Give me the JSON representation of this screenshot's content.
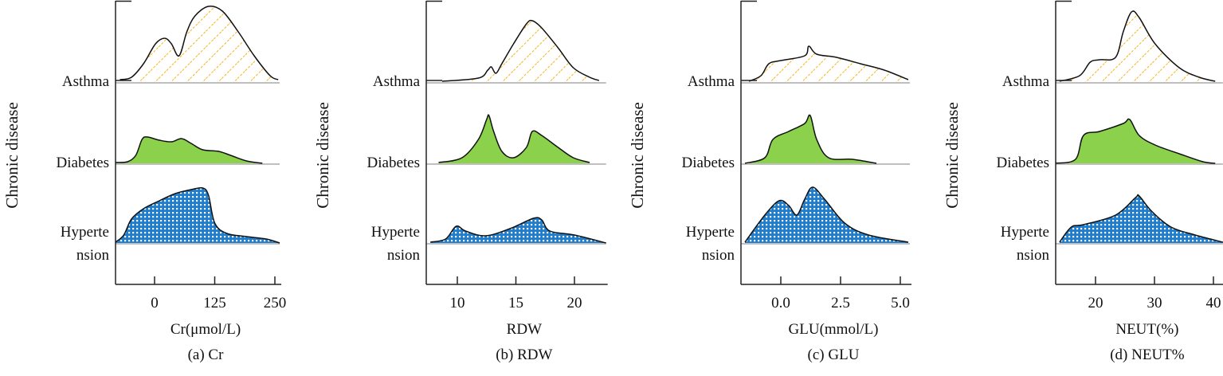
{
  "colors": {
    "asthma_hatch": "#f5b51c",
    "diabetes_fill": "#8cd14b",
    "hypertension_fill": "#1f7dcc",
    "outline": "#111111",
    "baseline": "#aaaaaa"
  },
  "chart_data": [
    {
      "type": "area",
      "title": "(a) Cr",
      "xlabel": "Cr(μmol/L)",
      "ylabel": "Chronic disease",
      "xlim": [
        -81,
        260
      ],
      "xticks": [
        0,
        125,
        250
      ],
      "xtick_labels": [
        "0",
        "125",
        "250"
      ],
      "categories": [
        "Asthma",
        "Diabetes",
        "Hypertension"
      ],
      "category_labels": [
        [
          "Asthma"
        ],
        [
          "Diabetes"
        ],
        [
          "Hyperte",
          "nsion"
        ]
      ],
      "series": [
        {
          "name": "Asthma",
          "x": [
            -72,
            -48,
            -23,
            2,
            21,
            35,
            51,
            67,
            84,
            112,
            141,
            174,
            207,
            240,
            257
          ],
          "density": [
            3,
            6,
            23,
            48,
            55,
            48,
            33,
            63,
            83,
            95,
            89,
            63,
            33,
            8,
            3
          ]
        },
        {
          "name": "Diabetes",
          "x": [
            -81,
            -56,
            -39,
            -26,
            -15,
            10,
            35,
            56,
            76,
            100,
            133,
            158,
            191,
            224
          ],
          "density": [
            1,
            2,
            10,
            30,
            33,
            29,
            27,
            31,
            25,
            17,
            15,
            10,
            3,
            0
          ]
        },
        {
          "name": "Hypertension",
          "x": [
            -81,
            -64,
            -48,
            -23,
            10,
            43,
            76,
            100,
            112,
            125,
            150,
            191,
            232,
            260
          ],
          "density": [
            1,
            10,
            30,
            43,
            53,
            62,
            67,
            69,
            60,
            25,
            12,
            8,
            5,
            0
          ]
        }
      ]
    },
    {
      "type": "area",
      "title": "(b) RDW",
      "xlabel": "RDW",
      "ylabel": "Chronic disease",
      "xlim": [
        7.4,
        22.7
      ],
      "xticks": [
        10,
        15,
        20
      ],
      "xtick_labels": [
        "10",
        "15",
        "20"
      ],
      "categories": [
        "Asthma",
        "Diabetes",
        "Hypertension"
      ],
      "category_labels": [
        [
          "Asthma"
        ],
        [
          "Diabetes"
        ],
        [
          "Hyperte",
          "nsion"
        ]
      ],
      "series": [
        {
          "name": "Asthma",
          "x": [
            8.7,
            11.8,
            12.6,
            12.9,
            13.3,
            13.8,
            14.8,
            15.9,
            16.4,
            17.2,
            18.6,
            19.9,
            21.3,
            22.1
          ],
          "density": [
            1,
            5,
            15,
            19,
            11,
            23,
            48,
            73,
            77,
            68,
            43,
            18,
            6,
            2
          ]
        },
        {
          "name": "Diabetes",
          "x": [
            8.4,
            10.4,
            11.8,
            12.5,
            12.7,
            13.1,
            13.8,
            14.8,
            15.9,
            16.4,
            17.2,
            18.6,
            19.9,
            21.3
          ],
          "density": [
            1,
            7,
            30,
            55,
            60,
            40,
            15,
            7,
            20,
            40,
            35,
            20,
            7,
            1
          ]
        },
        {
          "name": "Hypertension",
          "x": [
            7.7,
            9.0,
            9.9,
            10.7,
            12.4,
            14.5,
            16.5,
            17.2,
            17.9,
            20.0,
            22.7
          ],
          "density": [
            1,
            5,
            21,
            15,
            9,
            18,
            31,
            29,
            15,
            10,
            0
          ]
        }
      ]
    },
    {
      "type": "area",
      "title": "(c) GLU",
      "xlabel": "GLU(mmol/L)",
      "ylabel": "Chronic disease",
      "xlim": [
        -1.67,
        5.4
      ],
      "xticks": [
        0,
        2.5,
        5
      ],
      "xtick_labels": [
        "0.0",
        "2.5",
        "5.0"
      ],
      "categories": [
        "Asthma",
        "Diabetes",
        "Hypertension"
      ],
      "category_labels": [
        [
          "Asthma"
        ],
        [
          "Diabetes"
        ],
        [
          "Hyperte",
          "nsion"
        ]
      ],
      "series": [
        {
          "name": "Asthma",
          "x": [
            -1.33,
            -0.83,
            -0.5,
            0,
            1.0,
            1.17,
            1.5,
            2.33,
            3.33,
            4.33,
            5.33
          ],
          "density": [
            1,
            8,
            23,
            27,
            33,
            45,
            35,
            31,
            23,
            15,
            3
          ]
        },
        {
          "name": "Diabetes",
          "x": [
            -1.5,
            -0.67,
            -0.33,
            0.33,
            1.0,
            1.23,
            1.5,
            2.0,
            3.0,
            4.0
          ],
          "density": [
            0,
            7,
            30,
            40,
            50,
            60,
            30,
            7,
            5,
            0
          ]
        },
        {
          "name": "Hypertension",
          "x": [
            -1.5,
            -0.67,
            -0.07,
            0.33,
            0.67,
            1.0,
            1.33,
            1.83,
            2.67,
            3.67,
            5.33
          ],
          "density": [
            1,
            35,
            53,
            47,
            35,
            55,
            70,
            55,
            25,
            10,
            1
          ]
        }
      ]
    },
    {
      "type": "area",
      "title": "(d) NEUT%",
      "xlabel": "NEUT(%)",
      "ylabel": "Chronic disease",
      "xlim": [
        13.2,
        41.6
      ],
      "xticks": [
        20,
        30,
        40
      ],
      "xtick_labels": [
        "20",
        "30",
        "40"
      ],
      "categories": [
        "Asthma",
        "Diabetes",
        "Hypertension"
      ],
      "category_labels": [
        [
          "Asthma"
        ],
        [
          "Diabetes"
        ],
        [
          "Hyperte",
          "nsion"
        ]
      ],
      "series": [
        {
          "name": "Asthma",
          "x": [
            13.9,
            17.3,
            19.1,
            20.7,
            23.4,
            24.7,
            26.1,
            27.4,
            30.1,
            34.2,
            37.6,
            40.3
          ],
          "density": [
            1,
            8,
            25,
            28,
            31,
            63,
            88,
            81,
            48,
            18,
            6,
            1
          ]
        },
        {
          "name": "Diabetes",
          "x": [
            13.2,
            16.6,
            17.97,
            20.7,
            24.7,
            25.8,
            27.4,
            30.1,
            34.2,
            38.2,
            40.3
          ],
          "density": [
            0,
            5,
            35,
            40,
            50,
            55,
            35,
            23,
            12,
            2,
            0
          ]
        },
        {
          "name": "Hypertension",
          "x": [
            13.9,
            15.9,
            17.97,
            23.4,
            26.8,
            27.4,
            29.5,
            32.8,
            36.9,
            41.6
          ],
          "density": [
            1,
            20,
            23,
            35,
            57,
            59,
            40,
            20,
            10,
            1
          ]
        }
      ]
    }
  ]
}
